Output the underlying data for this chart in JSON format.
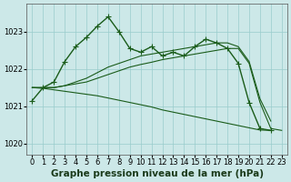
{
  "background_color": "#cce8e8",
  "grid_color": "#99cccc",
  "line_color": "#1a5c1a",
  "title": "Graphe pression niveau de la mer (hPa)",
  "xlabel_ticks": [
    0,
    1,
    2,
    3,
    4,
    5,
    6,
    7,
    8,
    9,
    10,
    11,
    12,
    13,
    14,
    15,
    16,
    17,
    18,
    19,
    20,
    21,
    22,
    23
  ],
  "ylim": [
    1019.7,
    1023.75
  ],
  "yticks": [
    1020,
    1021,
    1022,
    1023
  ],
  "series": [
    {
      "x": [
        0,
        1,
        2,
        3,
        4,
        5,
        6,
        7,
        8,
        9,
        10,
        11,
        12,
        13,
        14,
        15,
        16,
        17,
        18,
        19,
        20,
        21,
        22,
        23
      ],
      "y": [
        1021.15,
        1021.5,
        1021.65,
        1022.2,
        1022.6,
        1022.85,
        1023.15,
        1023.4,
        1023.0,
        1022.55,
        1022.45,
        1022.6,
        1022.35,
        1022.45,
        1022.35,
        1022.6,
        1022.8,
        1022.7,
        1022.55,
        1022.15,
        1021.1,
        1020.4,
        1020.35,
        null
      ],
      "marker": "+",
      "linestyle": "-",
      "linewidth": 1.0,
      "markersize": 4.0
    },
    {
      "x": [
        0,
        1,
        2,
        3,
        4,
        5,
        6,
        7,
        8,
        9,
        10,
        11,
        12,
        13,
        14,
        15,
        16,
        17,
        18,
        19,
        20,
        21,
        22,
        23
      ],
      "y": [
        1021.5,
        1021.5,
        1021.5,
        1021.55,
        1021.6,
        1021.65,
        1021.75,
        1021.85,
        1021.95,
        1022.05,
        1022.12,
        1022.18,
        1022.25,
        1022.3,
        1022.35,
        1022.4,
        1022.45,
        1022.5,
        1022.55,
        1022.55,
        1022.15,
        1021.1,
        1020.4,
        1020.35
      ],
      "marker": null,
      "linestyle": "-",
      "linewidth": 0.8,
      "markersize": 0
    },
    {
      "x": [
        0,
        1,
        2,
        3,
        4,
        5,
        6,
        7,
        8,
        9,
        10,
        11,
        12,
        13,
        14,
        15,
        16,
        17,
        18,
        19,
        20,
        21,
        22,
        23
      ],
      "y": [
        1021.5,
        1021.5,
        1021.5,
        1021.55,
        1021.65,
        1021.75,
        1021.9,
        1022.05,
        1022.15,
        1022.25,
        1022.35,
        1022.4,
        1022.45,
        1022.5,
        1022.55,
        1022.6,
        1022.65,
        1022.7,
        1022.7,
        1022.6,
        1022.2,
        1021.2,
        1020.6,
        null
      ],
      "marker": null,
      "linestyle": "-",
      "linewidth": 0.8,
      "markersize": 0
    },
    {
      "x": [
        0,
        1,
        2,
        3,
        4,
        5,
        6,
        7,
        8,
        9,
        10,
        11,
        12,
        13,
        14,
        15,
        16,
        17,
        18,
        19,
        20,
        21,
        22,
        23
      ],
      "y": [
        1021.5,
        1021.48,
        1021.44,
        1021.4,
        1021.36,
        1021.32,
        1021.28,
        1021.22,
        1021.16,
        1021.1,
        1021.04,
        1020.98,
        1020.9,
        1020.84,
        1020.78,
        1020.72,
        1020.66,
        1020.6,
        1020.54,
        1020.48,
        1020.42,
        1020.36,
        1020.35,
        null
      ],
      "marker": null,
      "linestyle": "-",
      "linewidth": 0.8,
      "markersize": 0
    }
  ],
  "title_fontsize": 7.5,
  "tick_fontsize": 6.0
}
